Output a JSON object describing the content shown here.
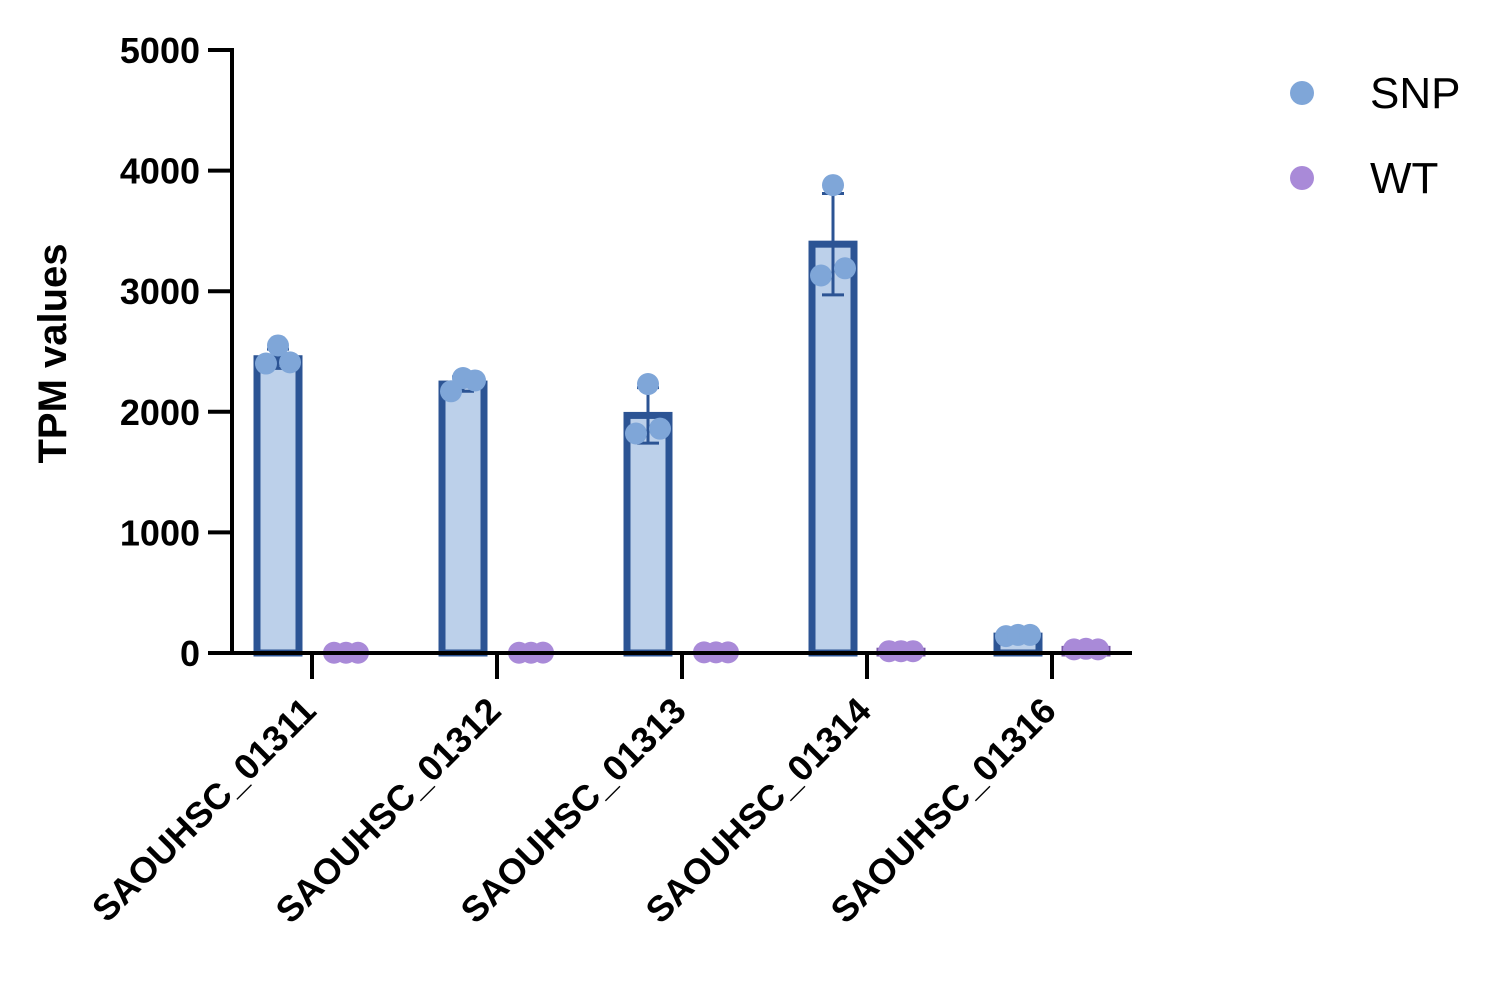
{
  "chart_data": {
    "type": "bar",
    "title": "",
    "xlabel": "",
    "ylabel": "TPM values",
    "ylim": [
      0,
      5000
    ],
    "yticks": [
      0,
      1000,
      2000,
      3000,
      4000,
      5000
    ],
    "grid": false,
    "legend_position": "top-right",
    "categories": [
      "SAOUHSC_01311",
      "SAOUHSC_01312",
      "SAOUHSC_01313",
      "SAOUHSC_01314",
      "SAOUHSC_01316"
    ],
    "series": [
      {
        "name": "SNP",
        "bar_fill": "#bcd0ea",
        "bar_edge": "#2c5494",
        "point_color": "#7fa6d8",
        "values": [
          2440,
          2230,
          1970,
          3390,
          140
        ],
        "error": [
          80,
          60,
          230,
          420,
          15
        ],
        "points": [
          [
            2400,
            2550,
            2410
          ],
          [
            2170,
            2280,
            2260
          ],
          [
            1820,
            2230,
            1860
          ],
          [
            3130,
            3880,
            3190
          ],
          [
            140,
            150,
            150
          ]
        ]
      },
      {
        "name": "WT",
        "bar_fill": "#e9ddf5",
        "bar_edge": "#7a5aa8",
        "point_color": "#a98ad8",
        "values": [
          2,
          2,
          5,
          15,
          30
        ],
        "error": [
          1,
          1,
          2,
          3,
          5
        ],
        "points": [
          [
            2,
            2,
            2
          ],
          [
            2,
            2,
            3
          ],
          [
            5,
            5,
            5
          ],
          [
            15,
            15,
            15
          ],
          [
            30,
            35,
            30
          ]
        ]
      }
    ]
  }
}
